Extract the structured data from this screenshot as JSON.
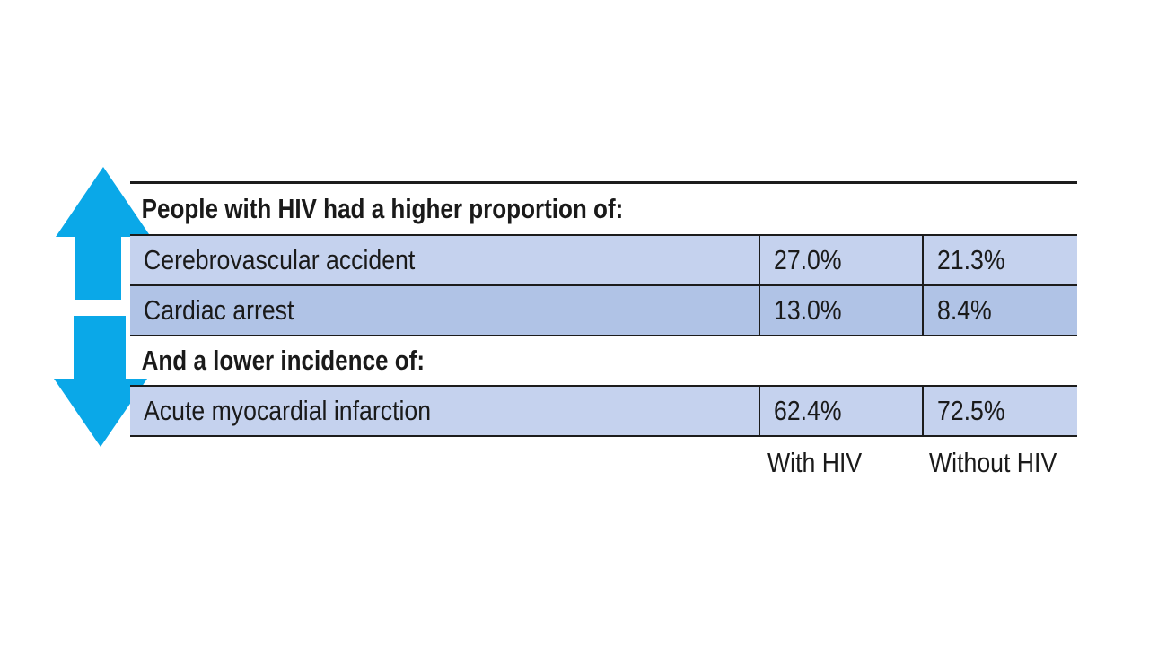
{
  "colors": {
    "arrow": "#0aa8e8",
    "row_light": "#c5d2ee",
    "row_dark": "#b0c3e6",
    "rule": "#1c1c1c"
  },
  "icons": {
    "up": "arrow-up-icon",
    "down": "arrow-down-icon"
  },
  "chart_data": {
    "type": "table",
    "columns": [
      "With HIV",
      "Without HIV"
    ],
    "sections": [
      {
        "heading": "People with HIV had a higher proportion of:",
        "direction": "up",
        "rows": [
          {
            "label": "Cerebrovascular accident",
            "with_hiv": "27.0%",
            "without_hiv": "21.3%",
            "values": [
              27.0,
              21.3
            ]
          },
          {
            "label": "Cardiac arrest",
            "with_hiv": "13.0%",
            "without_hiv": "8.4%",
            "values": [
              13.0,
              8.4
            ]
          }
        ]
      },
      {
        "heading": "And a lower incidence of:",
        "direction": "down",
        "rows": [
          {
            "label": "Acute myocardial infarction",
            "with_hiv": "62.4%",
            "without_hiv": "72.5%",
            "values": [
              62.4,
              72.5
            ]
          }
        ]
      }
    ]
  }
}
